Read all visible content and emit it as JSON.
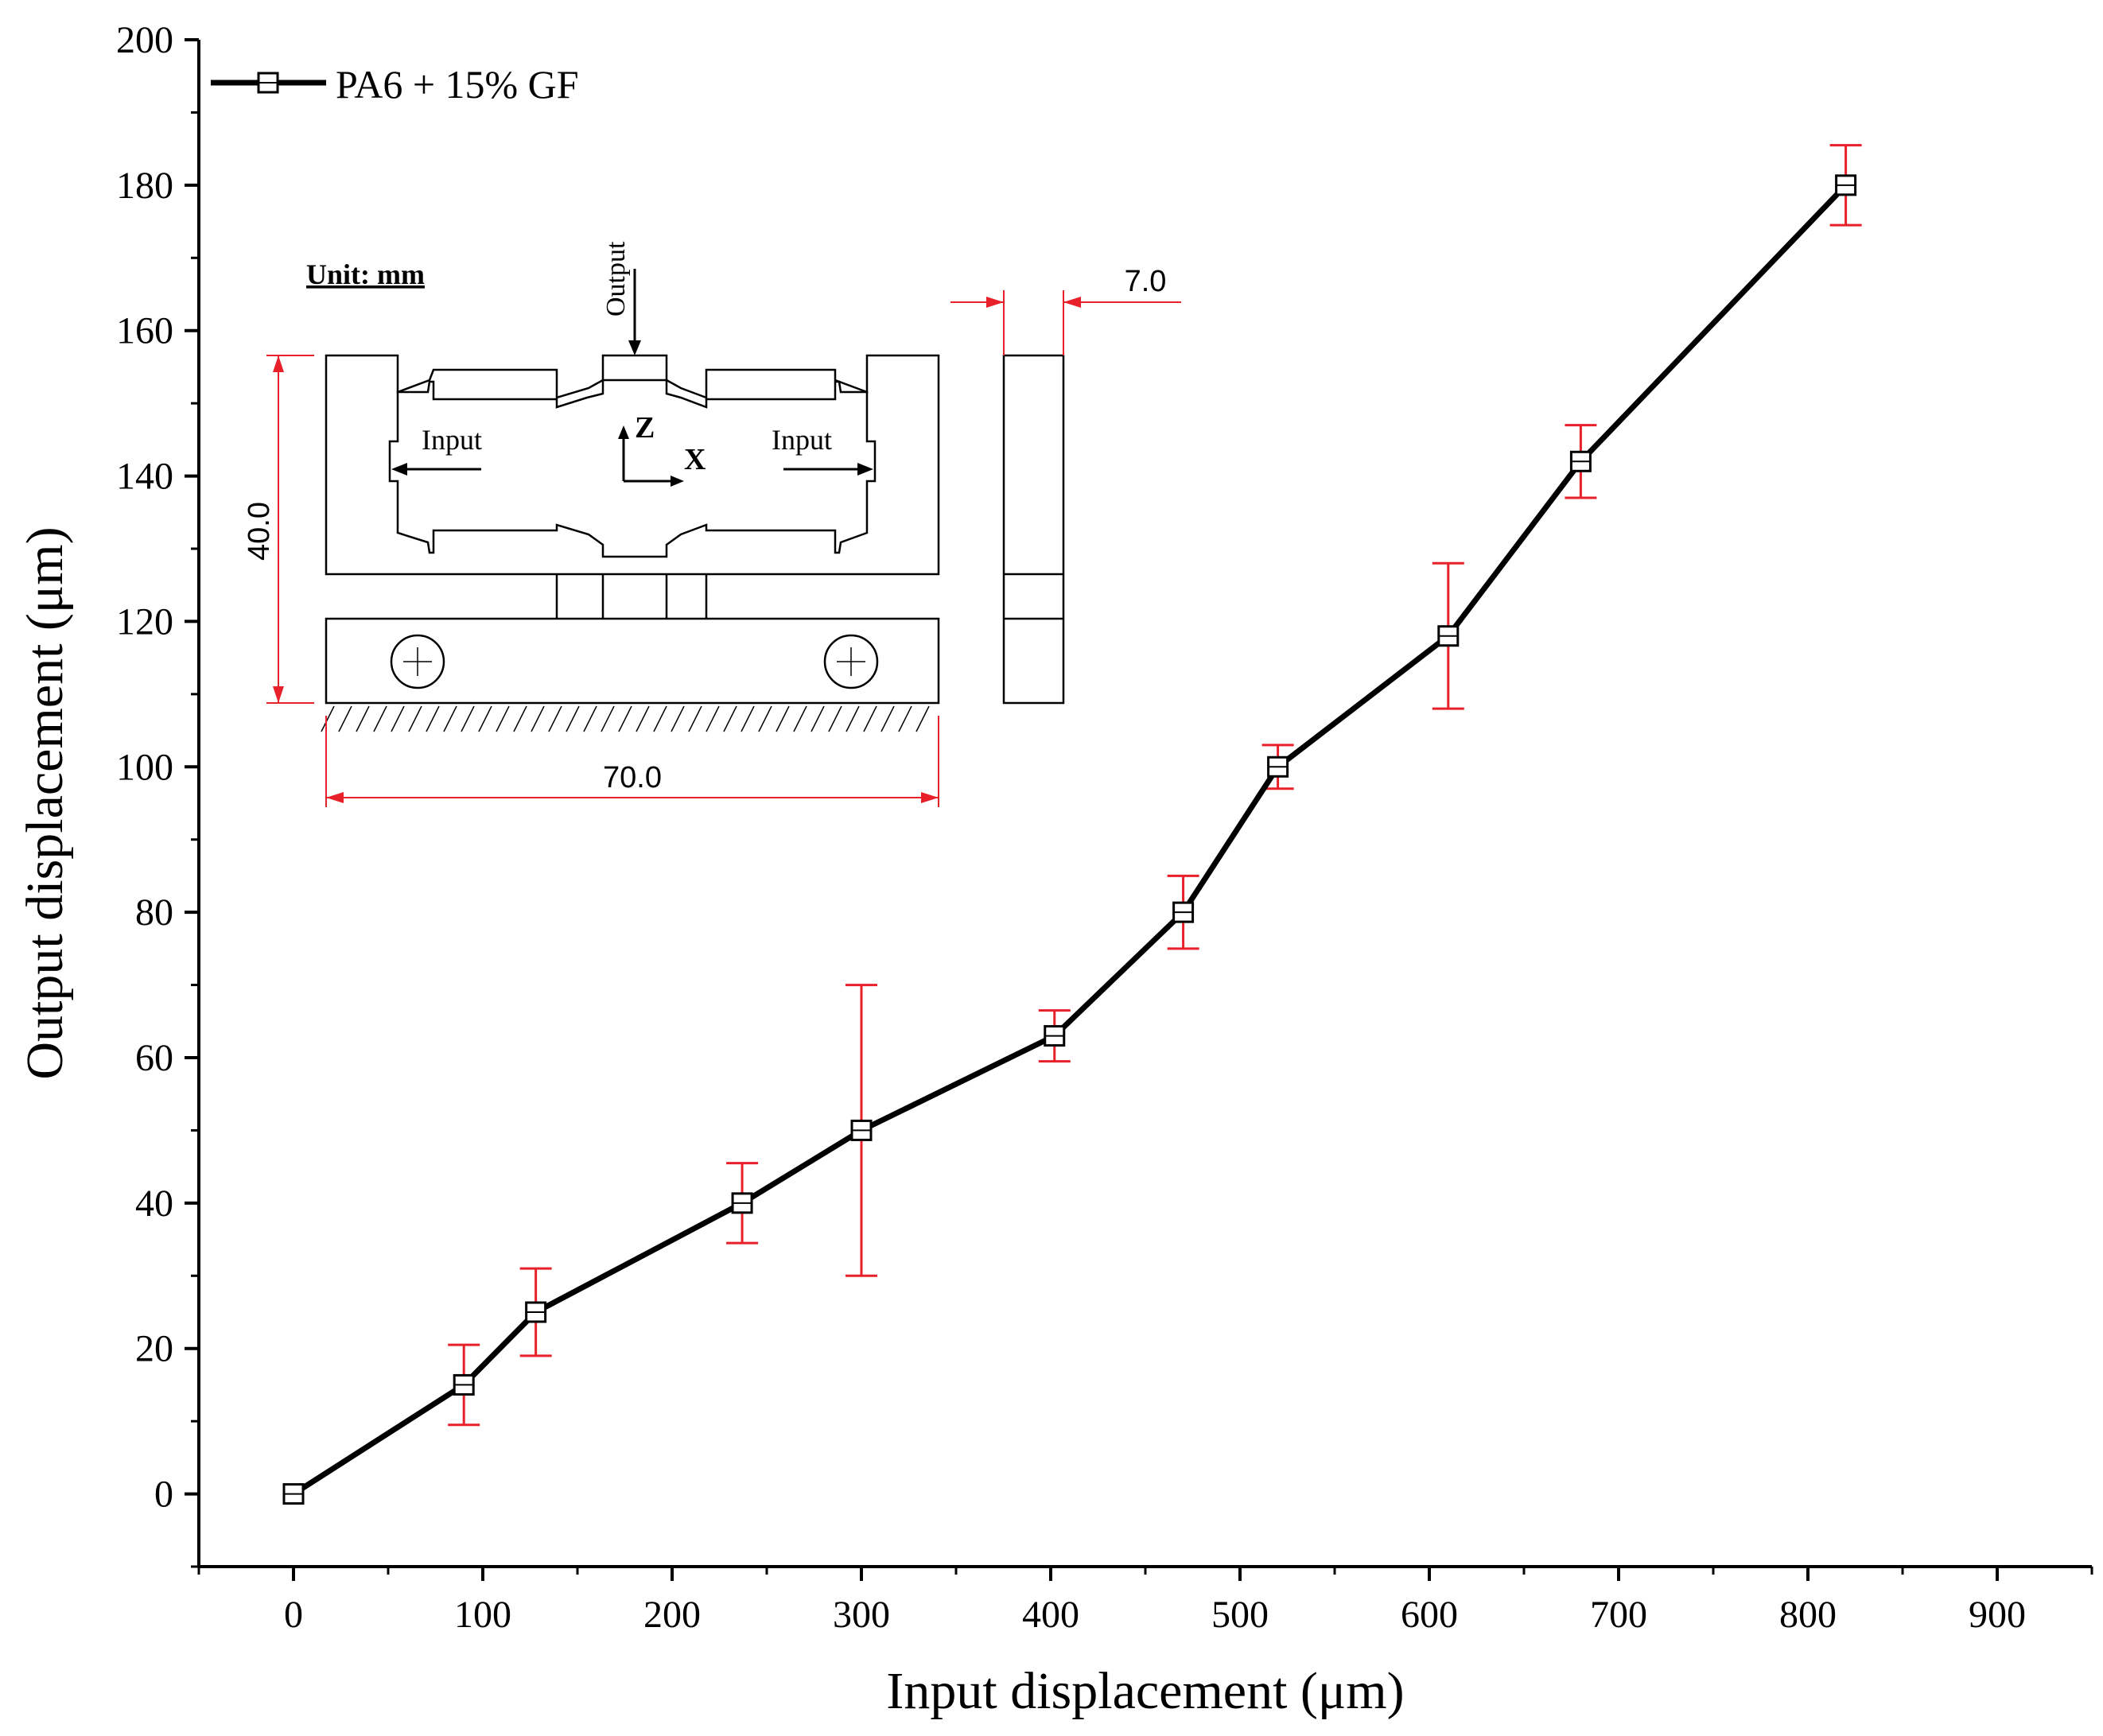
{
  "chart_data": {
    "type": "line",
    "xlabel": "Input displacement (μm)",
    "ylabel": "Output displacement (μm)",
    "xlim": [
      -50,
      950
    ],
    "ylim": [
      -10,
      200
    ],
    "x_ticks": [
      0,
      100,
      200,
      300,
      400,
      500,
      600,
      700,
      800,
      900
    ],
    "y_ticks": [
      0,
      20,
      40,
      60,
      80,
      100,
      120,
      140,
      160,
      180,
      200
    ],
    "legend_position": "top-left",
    "grid": false,
    "series": [
      {
        "name": "PA6 + 15% GF",
        "color": "#000000",
        "error_bar_color": "#e8202a",
        "marker": "square-with-line",
        "points": [
          {
            "x": 0,
            "y": 0,
            "err_low": 0,
            "err_high": 0
          },
          {
            "x": 90,
            "y": 15,
            "err_low": 9.5,
            "err_high": 20.5
          },
          {
            "x": 128,
            "y": 25,
            "err_low": 19,
            "err_high": 31
          },
          {
            "x": 237,
            "y": 40,
            "err_low": 34.5,
            "err_high": 45.5
          },
          {
            "x": 300,
            "y": 50,
            "err_low": 30,
            "err_high": 70
          },
          {
            "x": 402,
            "y": 63,
            "err_low": 59.5,
            "err_high": 66.5
          },
          {
            "x": 470,
            "y": 80,
            "err_low": 75,
            "err_high": 85
          },
          {
            "x": 520,
            "y": 100,
            "err_low": 97,
            "err_high": 103
          },
          {
            "x": 610,
            "y": 118,
            "err_low": 108,
            "err_high": 128
          },
          {
            "x": 680,
            "y": 142,
            "err_low": 137,
            "err_high": 147
          },
          {
            "x": 820,
            "y": 180,
            "err_low": 174.5,
            "err_high": 185.5
          }
        ]
      }
    ]
  },
  "inset": {
    "unit_label": "Unit: mm",
    "output_label": "Output",
    "input_left_label": "Input",
    "input_right_label": "Input",
    "axis_z_label": "Z",
    "axis_x_label": "X",
    "dim_height": "40.0",
    "dim_width": "70.0",
    "dim_thickness": "7.0",
    "dimension_color": "#e8202a"
  }
}
